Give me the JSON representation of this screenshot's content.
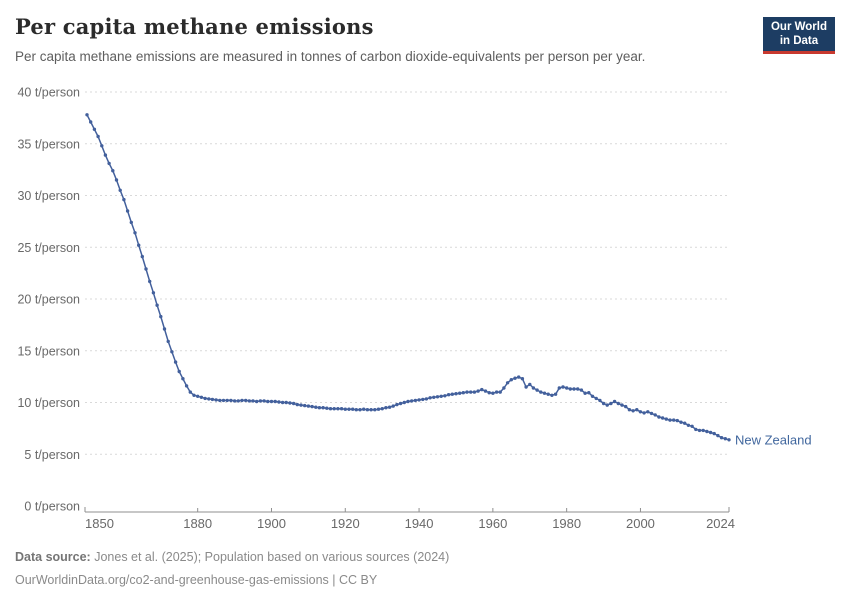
{
  "header": {
    "title": "Per capita methane emissions",
    "subtitle": "Per capita methane emissions are measured in tonnes of carbon dioxide-equivalents per person per year.",
    "logo": {
      "line1": "Our World",
      "line2": "in Data",
      "bg_color": "#1d3d63",
      "accent_color": "#c8392f"
    }
  },
  "chart_data": {
    "type": "line",
    "title": "Per capita methane emissions",
    "unit": "t/person",
    "xlabel": "",
    "ylabel": "t/person",
    "ylim": [
      0,
      40
    ],
    "y_ticks": [
      0,
      5,
      10,
      15,
      20,
      25,
      30,
      35,
      40
    ],
    "y_tick_suffix": " t/person",
    "x_ticks": [
      1850,
      1880,
      1900,
      1920,
      1940,
      1960,
      1980,
      2000,
      2024
    ],
    "grid": true,
    "legend_position": "end-of-line",
    "colors": {
      "line": "#43609c",
      "label": "#41679e",
      "grid": "#d9d9d9",
      "axis": "#8f8f8f",
      "tick_text": "#696969"
    },
    "series": [
      {
        "name": "New Zealand",
        "year_start": 1850,
        "year_end": 2024,
        "values": [
          37.8,
          37.1,
          36.4,
          35.7,
          34.8,
          33.9,
          33.1,
          32.4,
          31.5,
          30.5,
          29.6,
          28.5,
          27.4,
          26.4,
          25.2,
          24.1,
          22.9,
          21.7,
          20.6,
          19.4,
          18.3,
          17.1,
          15.9,
          14.9,
          13.9,
          13.0,
          12.3,
          11.6,
          11.0,
          10.7,
          10.6,
          10.5,
          10.4,
          10.35,
          10.3,
          10.25,
          10.2,
          10.2,
          10.2,
          10.2,
          10.15,
          10.15,
          10.2,
          10.2,
          10.15,
          10.15,
          10.1,
          10.15,
          10.15,
          10.1,
          10.1,
          10.1,
          10.05,
          10.0,
          10.0,
          9.95,
          9.9,
          9.8,
          9.75,
          9.7,
          9.65,
          9.6,
          9.55,
          9.5,
          9.5,
          9.45,
          9.4,
          9.4,
          9.4,
          9.4,
          9.35,
          9.35,
          9.35,
          9.3,
          9.3,
          9.35,
          9.3,
          9.3,
          9.3,
          9.35,
          9.4,
          9.5,
          9.55,
          9.65,
          9.8,
          9.9,
          10.0,
          10.1,
          10.15,
          10.2,
          10.25,
          10.3,
          10.35,
          10.45,
          10.5,
          10.55,
          10.6,
          10.65,
          10.75,
          10.8,
          10.85,
          10.9,
          10.95,
          11.0,
          11.0,
          11.0,
          11.1,
          11.25,
          11.1,
          10.95,
          10.9,
          11.0,
          11.0,
          11.4,
          11.9,
          12.2,
          12.35,
          12.45,
          12.3,
          11.5,
          11.75,
          11.4,
          11.2,
          11.0,
          10.9,
          10.8,
          10.7,
          10.8,
          11.4,
          11.5,
          11.4,
          11.3,
          11.3,
          11.3,
          11.2,
          10.9,
          10.95,
          10.6,
          10.4,
          10.2,
          9.9,
          9.75,
          9.9,
          10.1,
          9.9,
          9.75,
          9.6,
          9.3,
          9.2,
          9.3,
          9.1,
          9.0,
          9.1,
          8.95,
          8.8,
          8.6,
          8.5,
          8.4,
          8.3,
          8.3,
          8.25,
          8.1,
          8.0,
          7.8,
          7.7,
          7.4,
          7.3,
          7.3,
          7.2,
          7.1,
          7.0,
          6.8,
          6.6,
          6.5,
          6.4
        ]
      }
    ]
  },
  "footer": {
    "line1_bold": "Data source:",
    "line1_rest": " Jones et al. (2025); Population based on various sources (2024)",
    "line2": "OurWorldinData.org/co2-and-greenhouse-gas-emissions | CC BY"
  }
}
